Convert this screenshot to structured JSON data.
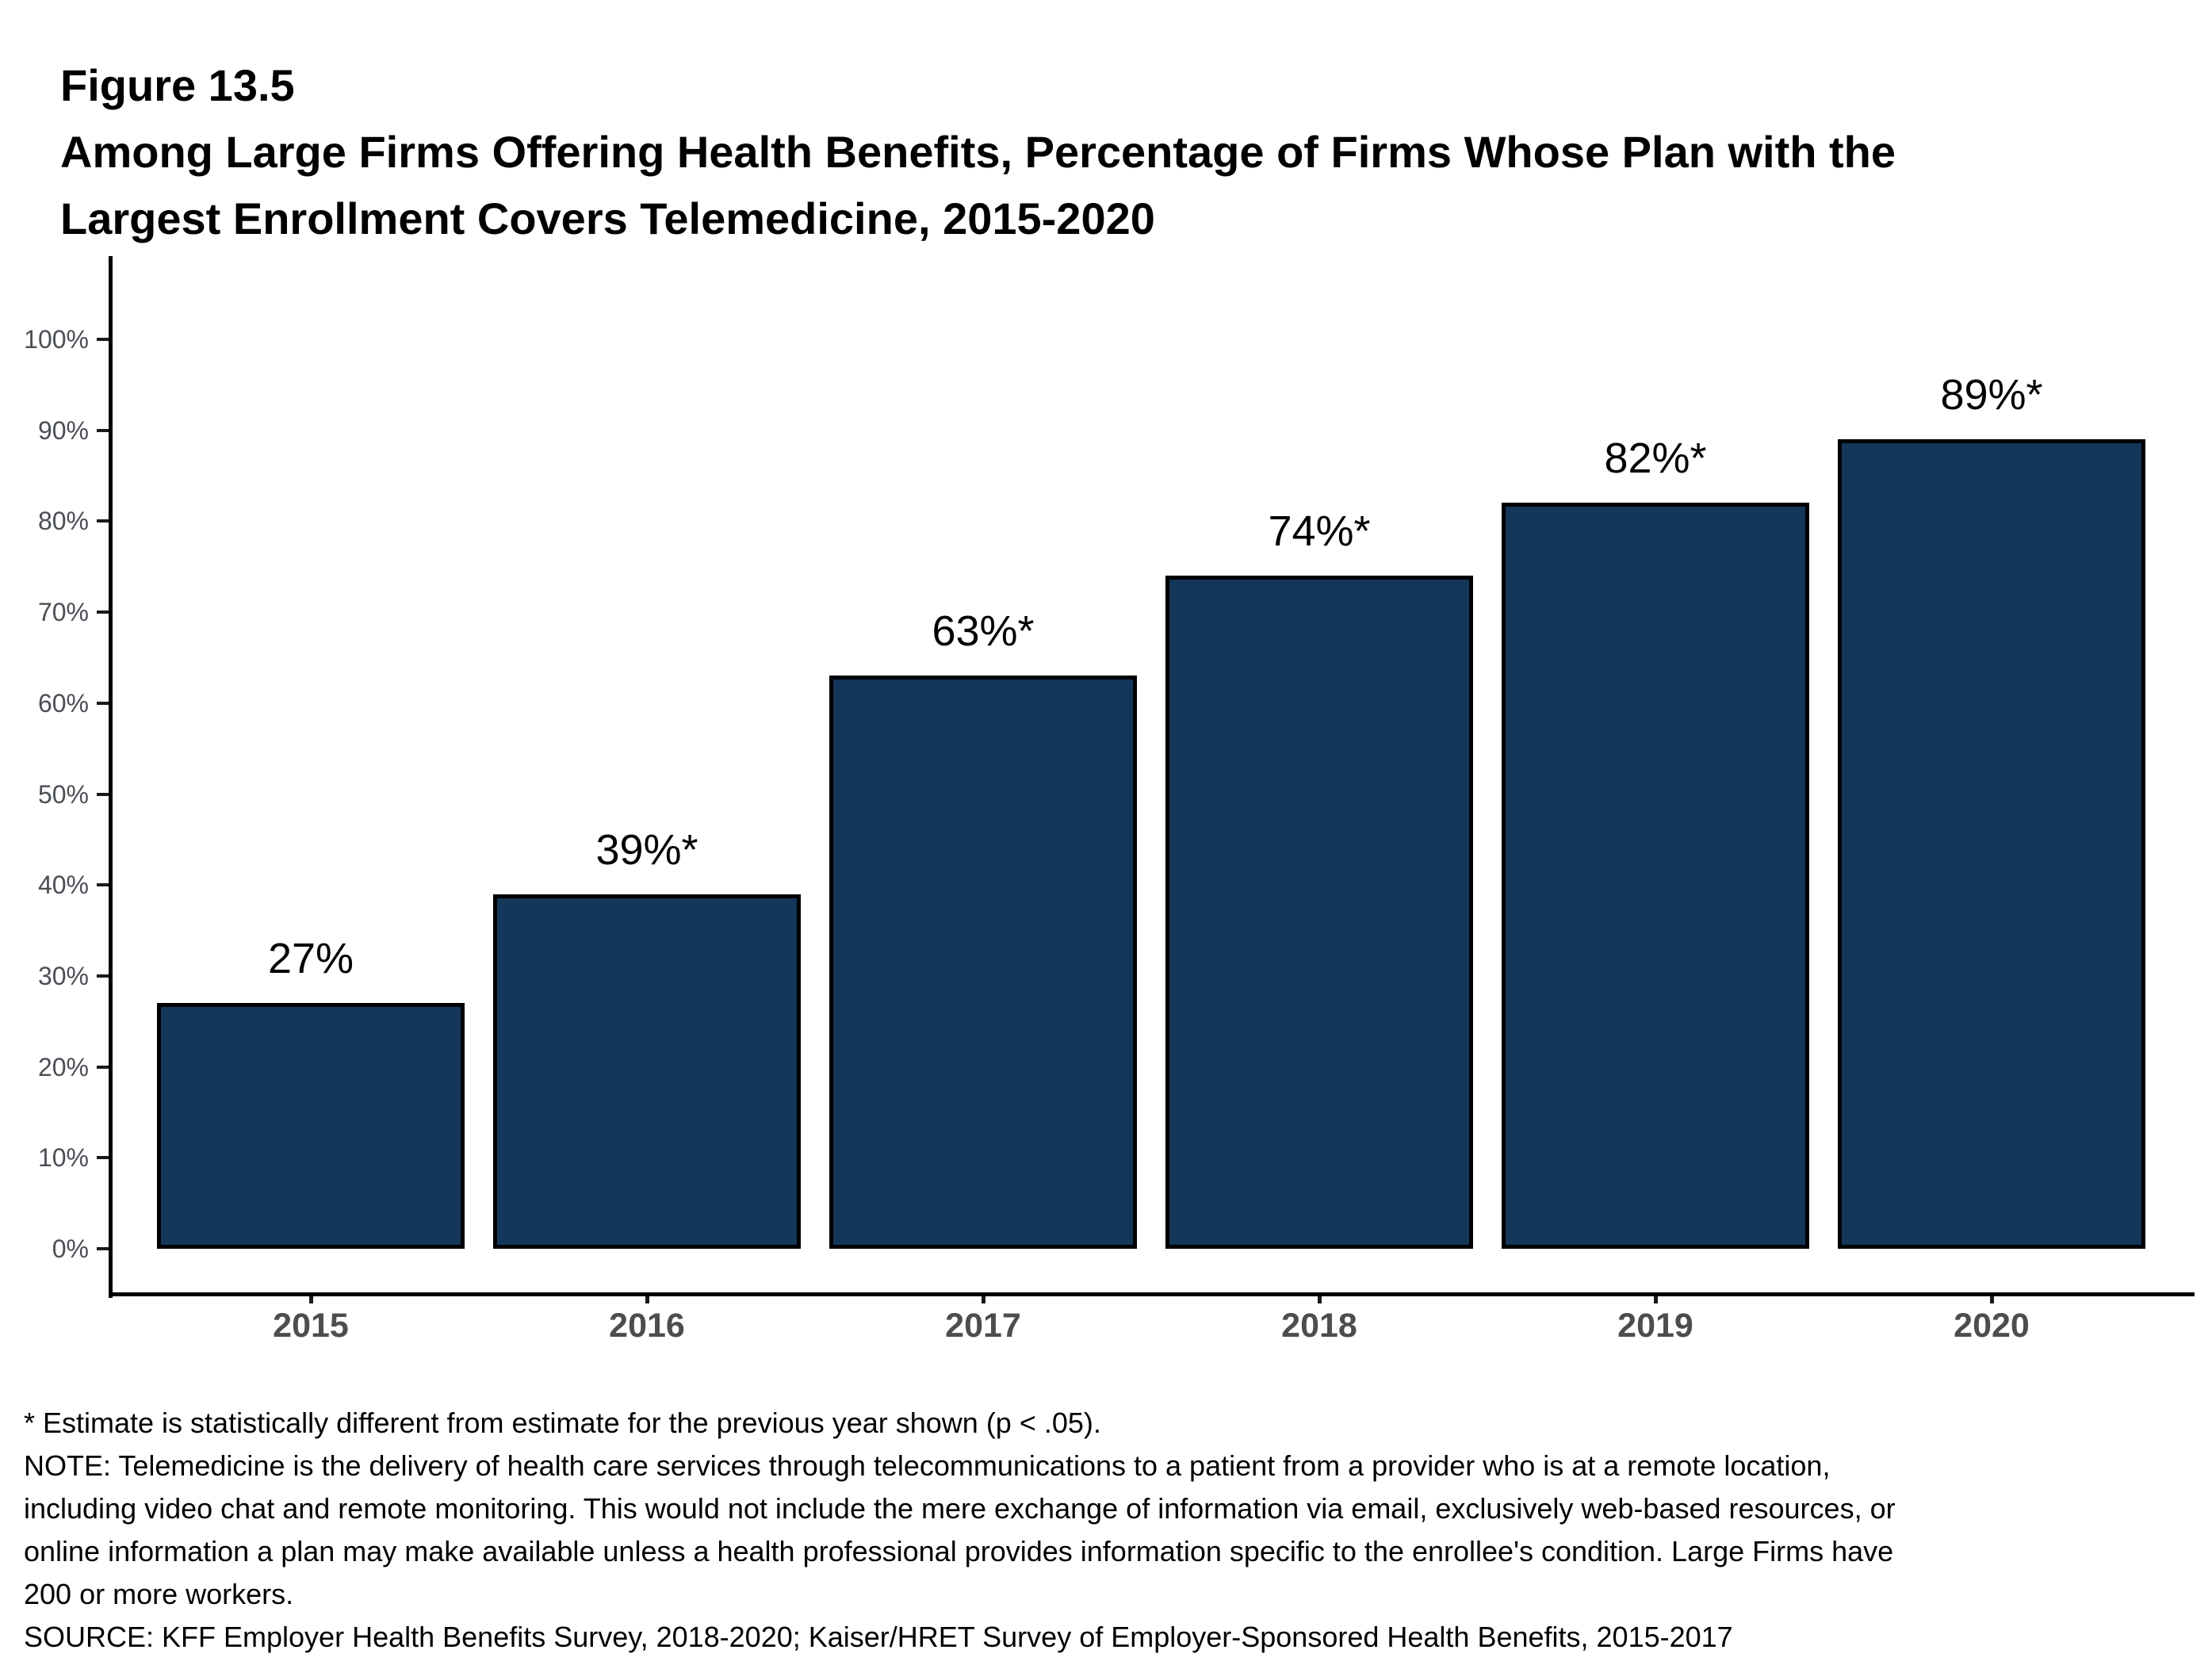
{
  "figure": {
    "label": "Figure 13.5",
    "title_line1": "Among Large Firms Offering Health Benefits, Percentage of Firms Whose Plan with the",
    "title_line2": "Largest Enrollment Covers Telemedicine, 2015-2020"
  },
  "chart_data": {
    "type": "bar",
    "title": "Among Large Firms Offering Health Benefits, Percentage of Firms Whose Plan with the Largest Enrollment Covers Telemedicine, 2015-2020",
    "categories": [
      "2015",
      "2016",
      "2017",
      "2018",
      "2019",
      "2020"
    ],
    "values": [
      27,
      39,
      63,
      74,
      82,
      89
    ],
    "bar_labels": [
      "27%",
      "39%*",
      "63%*",
      "74%*",
      "82%*",
      "89%*"
    ],
    "xlabel": "",
    "ylabel": "",
    "ylim": [
      0,
      100
    ],
    "y_tick_values": [
      0,
      10,
      20,
      30,
      40,
      50,
      60,
      70,
      80,
      90,
      100
    ],
    "y_tick_labels": [
      "0%",
      "10%",
      "20%",
      "30%",
      "40%",
      "50%",
      "60%",
      "70%",
      "80%",
      "90%",
      "100%"
    ],
    "grid": false,
    "legend_position": "none",
    "bar_color": "#143659",
    "bar_border_color": "#000000",
    "axis_color": "#000000",
    "x_tick_label_color": "#4d4d4d",
    "y_tick_label_color": "#4a4e55"
  },
  "footnotes": {
    "lines": [
      "* Estimate is statistically different from estimate for the previous year shown (p < .05).",
      "NOTE: Telemedicine is the delivery of health care services through telecommunications to a patient from a provider who is at a remote location,",
      "including video chat and remote monitoring. This would not include the mere exchange of information via email, exclusively web-based resources, or",
      "online information a plan may make available unless a health professional provides information specific to the enrollee's condition. Large Firms have",
      "200 or more workers.",
      "SOURCE: KFF Employer Health Benefits Survey, 2018-2020; Kaiser/HRET Survey of Employer-Sponsored Health Benefits, 2015-2017"
    ]
  }
}
